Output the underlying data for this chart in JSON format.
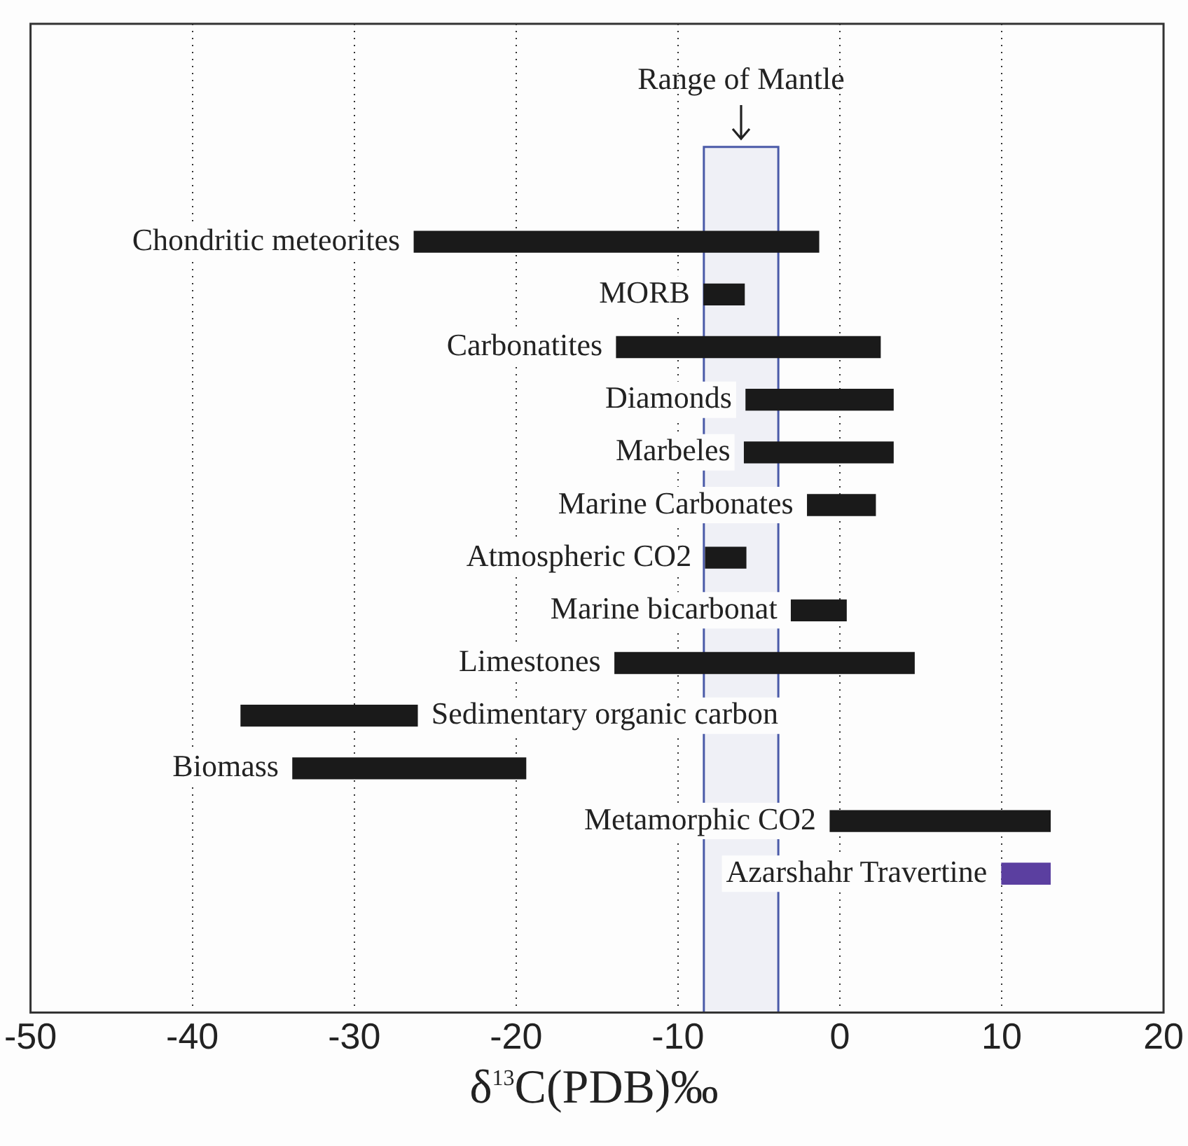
{
  "chart_data": {
    "type": "bar",
    "orientation": "horizontal",
    "xlabel": "δ$^{13}$C(PDB)‰",
    "categories": [
      "Chondritic meteorites",
      "MORB",
      "Carbonatites",
      "Diamonds",
      "Marbeles",
      "Marine Carbonates",
      "Atmospheric CO2",
      "Marine bicarbonat",
      "Limestones",
      "Sedimentary organic carbon",
      "Biomass",
      "Metamorphic CO2",
      "Azarshahr Travertine"
    ],
    "base": [
      -26.3,
      -8.4,
      -13.8,
      -5.8,
      -5.9,
      -2.0,
      -8.3,
      -3.0,
      -13.9,
      -37.0,
      -33.8,
      -0.6,
      10.0
    ],
    "values": [
      25.0,
      2.5,
      16.3,
      9.1,
      9.2,
      4.2,
      2.5,
      3.4,
      18.5,
      10.9,
      14.4,
      13.6,
      3.0
    ],
    "colors": [
      "#1a1a1a",
      "#1a1a1a",
      "#1a1a1a",
      "#1a1a1a",
      "#1a1a1a",
      "#1a1a1a",
      "#1a1a1a",
      "#1a1a1a",
      "#1a1a1a",
      "#1a1a1a",
      "#1a1a1a",
      "#1a1a1a",
      "#5b3fa0"
    ],
    "xlim": [
      -50,
      20
    ],
    "xticks": [
      -50,
      -40,
      -30,
      -20,
      -10,
      0,
      10,
      20
    ],
    "grid": "x",
    "bands": [
      {
        "axis": "x",
        "from": -8.4,
        "to": -3.8,
        "label": "Range of Mantle",
        "color": "#4a5aa8"
      }
    ]
  }
}
